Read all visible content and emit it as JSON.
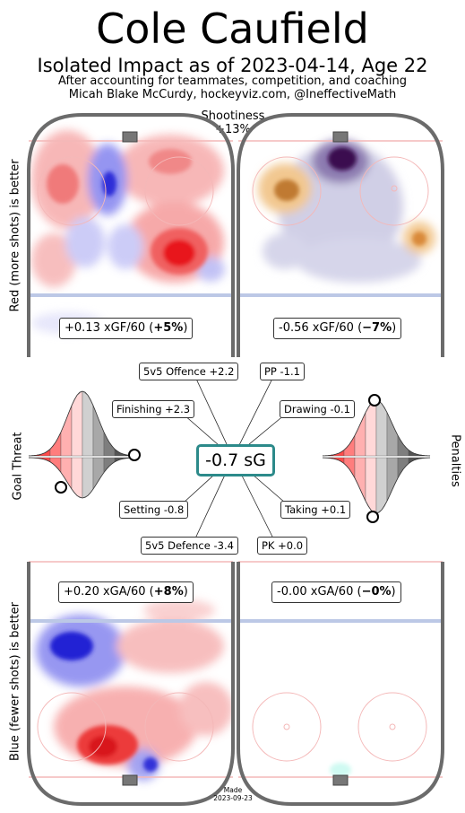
{
  "header": {
    "title": "Cole Caufield",
    "subtitle": "Isolated Impact as of 2023-04-14, Age 22",
    "line1": "After accounting for teammates, competition, and coaching",
    "line2": "Micah Blake McCurdy, hockeyviz.com, @IneffectiveMath"
  },
  "shooting": {
    "label": "Shootiness",
    "value": "+13%"
  },
  "side_labels": {
    "top": "Red (more shots) is better",
    "bottom": "Blue (fewer shots) is better",
    "left_middle": "Goal Threat",
    "right_middle": "Penalties"
  },
  "panels": {
    "top_left": {
      "text": "+0.13 xGF/60 (",
      "bold": "+5%",
      "end": ")"
    },
    "top_right": {
      "text": "-0.56 xGF/60 (",
      "bold": "−7%",
      "end": ")"
    },
    "bottom_left": {
      "text": "+0.20 xGA/60 (",
      "bold": "+8%",
      "end": ")"
    },
    "bottom_right": {
      "text": "-0.00 xGA/60 (",
      "bold": "−0%",
      "end": ")"
    }
  },
  "center": {
    "value": "-0.7 sG"
  },
  "footer": {
    "made": "Made",
    "date": "2023-09-23"
  },
  "colors": {
    "red": "#e8141c",
    "blue": "#1b1bd0",
    "purple": "#3a1050",
    "orange": "#d98a3a",
    "teal": "#2c8a8a",
    "rink_line": "#6b6b6b"
  },
  "chart_data": {
    "type": "other",
    "title": "Cole Caufield",
    "subtitle": "Isolated Impact as of 2023-04-14, Age 22",
    "shootiness": "+13%",
    "summary_sG": -0.7,
    "impacts": [
      {
        "label": "5v5 Offence",
        "value": 2.2,
        "display": "5v5 Offence +2.2"
      },
      {
        "label": "PP",
        "value": -1.1,
        "display": "PP -1.1"
      },
      {
        "label": "Finishing",
        "value": 2.3,
        "display": "Finishing +2.3"
      },
      {
        "label": "Drawing",
        "value": -0.1,
        "display": "Drawing -0.1"
      },
      {
        "label": "Setting",
        "value": -0.8,
        "display": "Setting -0.8"
      },
      {
        "label": "Taking",
        "value": 0.1,
        "display": "Taking +0.1"
      },
      {
        "label": "5v5 Defence",
        "value": -3.4,
        "display": "5v5 Defence -3.4"
      },
      {
        "label": "PK",
        "value": 0.0,
        "display": "PK +0.0"
      }
    ],
    "rates": [
      {
        "panel": "5v5 offence",
        "value": 0.13,
        "unit": "xGF/60",
        "pct": "+5%"
      },
      {
        "panel": "PP offence",
        "value": -0.56,
        "unit": "xGF/60",
        "pct": "-7%"
      },
      {
        "panel": "5v5 defence",
        "value": 0.2,
        "unit": "xGA/60",
        "pct": "+8%"
      },
      {
        "panel": "PK defence",
        "value": -0.0,
        "unit": "xGA/60",
        "pct": "-0%"
      }
    ]
  }
}
